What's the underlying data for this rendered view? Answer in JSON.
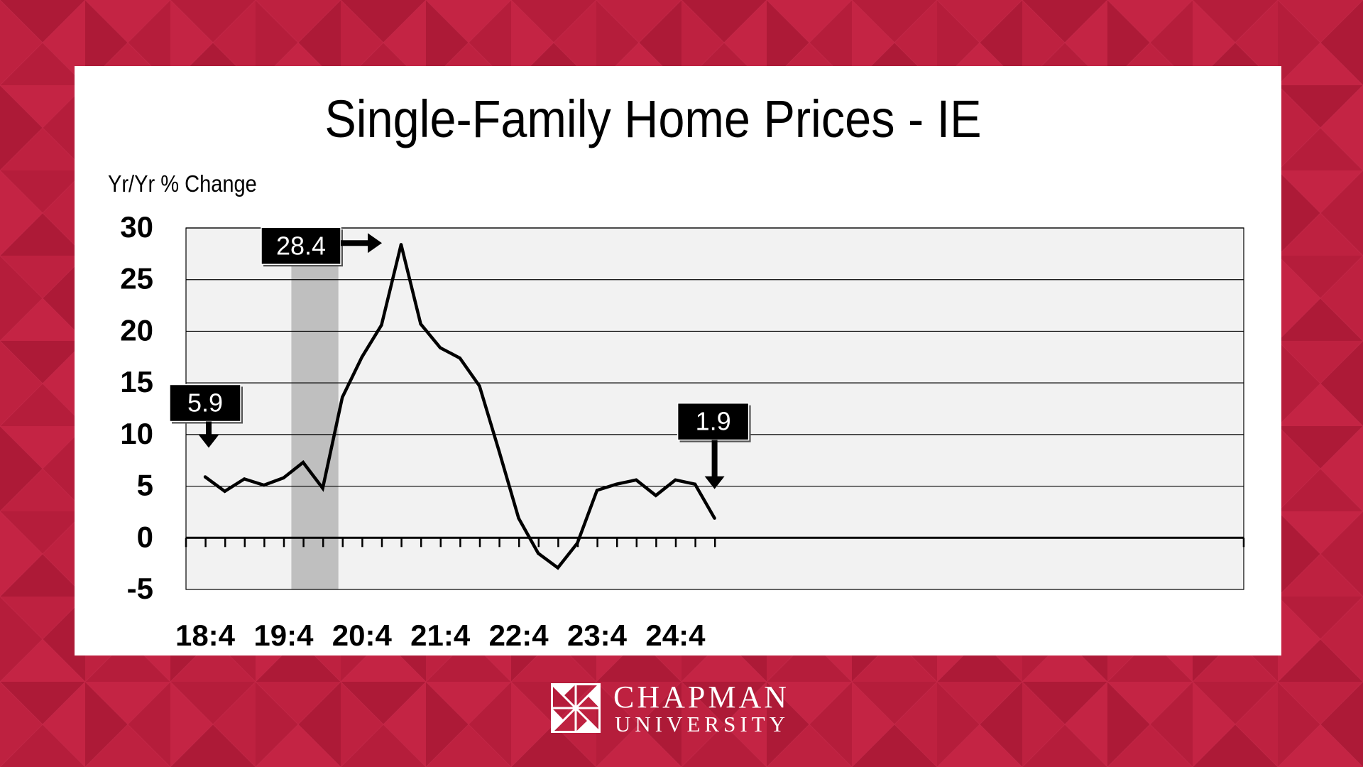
{
  "chart_data": {
    "type": "line",
    "title": "Single-Family Home Prices - IE",
    "ylabel": "Yr/Yr % Change",
    "xlabel": "",
    "ylim": [
      -5,
      30
    ],
    "yticks": [
      30,
      25,
      20,
      15,
      10,
      5,
      0,
      -5
    ],
    "x_tick_labels": [
      "18:4",
      "19:4",
      "20:4",
      "21:4",
      "22:4",
      "23:4",
      "24:4"
    ],
    "grid": true,
    "series": [
      {
        "values": [
          5.9,
          4.5,
          5.7,
          5.1,
          5.8,
          7.3,
          4.8,
          13.6,
          17.5,
          20.6,
          28.4,
          20.7,
          18.4,
          17.4,
          14.7,
          8.4,
          1.9,
          -1.5,
          -2.9,
          -0.5,
          4.6,
          5.2,
          5.6,
          4.1,
          5.6,
          5.2,
          1.9
        ]
      }
    ],
    "shaded_region": {
      "from_index": 5,
      "to_index": 6
    },
    "callouts": [
      {
        "label": "5.9",
        "index": 0,
        "arrow": "down"
      },
      {
        "label": "28.4",
        "index": 10,
        "arrow": "right"
      },
      {
        "label": "1.9",
        "index": 26,
        "arrow": "down"
      }
    ]
  },
  "branding": {
    "line1": "CHAPMAN",
    "line2": "UNIVERSITY"
  },
  "colors": {
    "background": "#b81d3c",
    "plot_area": "#f2f2f2",
    "shade": "#bfbfbf",
    "line": "#000000"
  }
}
